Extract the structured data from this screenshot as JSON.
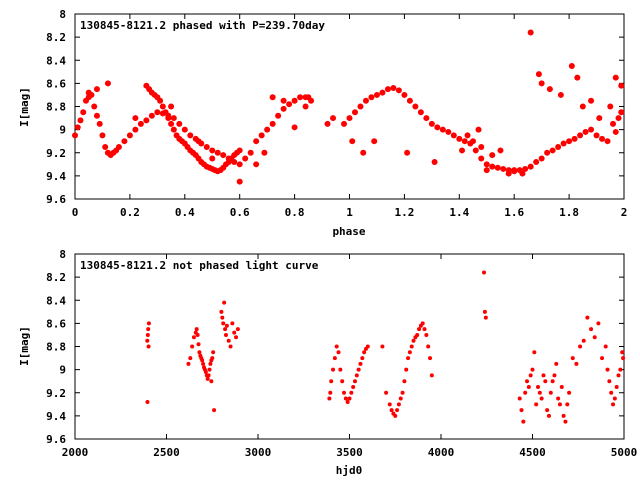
{
  "chart_data": [
    {
      "type": "scatter",
      "title": "130845-8121.2 phased with P=239.70day",
      "xlabel": "phase",
      "ylabel": "I[mag]",
      "xlim": [
        0,
        2
      ],
      "ylim": [
        8,
        9.6
      ],
      "y_inverted": true,
      "xticks": [
        "0",
        "0.2",
        "0.4",
        "0.6",
        "0.8",
        "1",
        "1.2",
        "1.4",
        "1.6",
        "1.8",
        "2"
      ],
      "yticks": [
        "8",
        "8.2",
        "8.4",
        "8.6",
        "8.8",
        "9",
        "9.2",
        "9.4",
        "9.6"
      ],
      "marker_color": "#ff0000",
      "series": [
        {
          "x": [
            0.0,
            0.01,
            0.02,
            0.03,
            0.04,
            0.05,
            0.06,
            0.07,
            0.08,
            0.09,
            0.1,
            0.11,
            0.12,
            0.13,
            0.14,
            0.15,
            0.16,
            0.18,
            0.2,
            0.22,
            0.24,
            0.26,
            0.28,
            0.3,
            0.32,
            0.34,
            0.36,
            0.38,
            0.4,
            0.42,
            0.44,
            0.46,
            0.48,
            0.5,
            0.52,
            0.54,
            0.56,
            0.58,
            0.6,
            0.62,
            0.64,
            0.66,
            0.68,
            0.7,
            0.72,
            0.74,
            0.76,
            0.78,
            0.8,
            0.82,
            0.84,
            0.86,
            0.26,
            0.27,
            0.28,
            0.29,
            0.3,
            0.31,
            0.32,
            0.33,
            0.34,
            0.35,
            0.36,
            0.37,
            0.38,
            0.39,
            0.4,
            0.41,
            0.42,
            0.43,
            0.44,
            0.45,
            0.46,
            0.47,
            0.48,
            0.49,
            0.5,
            0.51,
            0.52,
            0.53,
            0.54,
            0.55,
            0.56,
            0.57,
            0.58,
            0.59,
            0.6,
            0.05,
            0.08,
            0.12,
            0.22,
            0.35,
            0.45,
            0.5,
            0.6,
            0.66,
            0.69,
            0.72,
            0.76,
            0.8,
            0.84,
            0.85,
            0.92,
            0.94,
            0.98,
            1.0,
            1.02,
            1.04,
            1.06,
            1.08,
            1.1,
            1.12,
            1.14,
            1.16,
            1.18,
            1.2,
            1.22,
            1.24,
            1.26,
            1.28,
            1.3,
            1.32,
            1.34,
            1.36,
            1.38,
            1.4,
            1.42,
            1.44,
            1.46,
            1.48,
            1.5,
            1.52,
            1.54,
            1.56,
            1.58,
            1.6,
            1.62,
            1.64,
            1.66,
            1.68,
            1.7,
            1.72,
            1.74,
            1.76,
            1.78,
            1.8,
            1.82,
            1.84,
            1.86,
            1.88,
            1.9,
            1.92,
            1.94,
            1.96,
            1.98,
            1.95,
            1.97,
            1.99,
            1.01,
            1.05,
            1.09,
            1.21,
            1.31,
            1.41,
            1.5,
            1.58,
            1.66,
            1.69,
            1.7,
            1.73,
            1.77,
            1.81,
            1.83,
            1.85,
            1.88,
            1.91,
            1.97,
            1.99,
            1.48,
            1.52,
            1.55,
            1.45,
            1.43,
            1.47,
            1.6,
            1.63
          ],
          "y": [
            9.05,
            8.98,
            8.92,
            8.85,
            8.75,
            8.72,
            8.7,
            8.8,
            8.88,
            8.95,
            9.05,
            9.15,
            9.2,
            9.22,
            9.2,
            9.18,
            9.15,
            9.1,
            9.05,
            9.0,
            8.95,
            8.92,
            8.88,
            8.85,
            8.86,
            8.88,
            8.9,
            8.95,
            9.0,
            9.05,
            9.08,
            9.12,
            9.15,
            9.18,
            9.2,
            9.22,
            9.25,
            9.28,
            9.3,
            9.25,
            9.2,
            9.1,
            9.05,
            9.0,
            8.95,
            8.88,
            8.82,
            8.78,
            8.75,
            8.72,
            8.72,
            8.75,
            8.62,
            8.65,
            8.68,
            8.7,
            8.72,
            8.75,
            8.8,
            8.85,
            8.9,
            8.95,
            9.0,
            9.05,
            9.08,
            9.1,
            9.12,
            9.15,
            9.18,
            9.2,
            9.22,
            9.25,
            9.28,
            9.3,
            9.32,
            9.33,
            9.34,
            9.35,
            9.36,
            9.35,
            9.33,
            9.3,
            9.28,
            9.25,
            9.22,
            9.2,
            9.18,
            8.68,
            8.65,
            8.6,
            8.9,
            8.8,
            9.1,
            9.25,
            9.45,
            9.3,
            9.2,
            8.72,
            8.75,
            8.98,
            8.8,
            8.72,
            8.95,
            8.9,
            8.95,
            8.9,
            8.85,
            8.8,
            8.75,
            8.72,
            8.7,
            8.68,
            8.65,
            8.64,
            8.66,
            8.7,
            8.75,
            8.8,
            8.85,
            8.9,
            8.95,
            8.98,
            9.0,
            9.02,
            9.05,
            9.08,
            9.1,
            9.12,
            9.18,
            9.25,
            9.3,
            9.32,
            9.33,
            9.34,
            9.35,
            9.36,
            9.35,
            9.34,
            9.32,
            9.28,
            9.25,
            9.2,
            9.18,
            9.15,
            9.12,
            9.1,
            9.08,
            9.05,
            9.02,
            9.0,
            9.05,
            9.08,
            9.1,
            8.95,
            8.9,
            8.8,
            9.02,
            8.85,
            9.1,
            9.2,
            9.1,
            9.2,
            9.28,
            9.18,
            9.35,
            9.38,
            8.16,
            8.52,
            8.6,
            8.65,
            8.7,
            8.45,
            8.55,
            8.8,
            8.75,
            8.9,
            8.55,
            8.62,
            9.15,
            9.22,
            9.18,
            9.1,
            9.05,
            9.0,
            9.35,
            9.38
          ]
        }
      ]
    },
    {
      "type": "scatter",
      "title": "130845-8121.2 not phased light curve",
      "xlabel": "hjd0",
      "ylabel": "I[mag]",
      "xlim": [
        2000,
        5000
      ],
      "ylim": [
        8,
        9.6
      ],
      "y_inverted": true,
      "xticks": [
        "2000",
        "2500",
        "3000",
        "3500",
        "4000",
        "4500",
        "5000"
      ],
      "yticks": [
        "8",
        "8.2",
        "8.4",
        "8.6",
        "8.8",
        "9",
        "9.2",
        "9.4",
        "9.6"
      ],
      "marker_color": "#ff0000",
      "series": [
        {
          "x": [
            2395,
            2398,
            2400,
            2402,
            2404,
            2396,
            2620,
            2630,
            2640,
            2650,
            2660,
            2665,
            2670,
            2675,
            2680,
            2685,
            2690,
            2695,
            2700,
            2705,
            2710,
            2715,
            2720,
            2725,
            2730,
            2735,
            2740,
            2745,
            2750,
            2755,
            2760,
            2745,
            2800,
            2805,
            2810,
            2815,
            2820,
            2825,
            2830,
            2840,
            2850,
            2860,
            2870,
            2880,
            2890,
            3390,
            3395,
            3400,
            3410,
            3420,
            3430,
            3440,
            3450,
            3460,
            3470,
            3480,
            3490,
            3500,
            3510,
            3520,
            3530,
            3540,
            3550,
            3560,
            3570,
            3580,
            3590,
            3600,
            3680,
            3700,
            3720,
            3730,
            3740,
            3750,
            3760,
            3770,
            3780,
            3790,
            3800,
            3810,
            3820,
            3830,
            3840,
            3850,
            3860,
            3870,
            3880,
            3890,
            3900,
            3910,
            3920,
            3930,
            3940,
            3950,
            4235,
            4240,
            4245,
            4430,
            4440,
            4450,
            4460,
            4470,
            4480,
            4490,
            4500,
            4510,
            4520,
            4530,
            4540,
            4550,
            4560,
            4570,
            4580,
            4590,
            4600,
            4610,
            4620,
            4630,
            4640,
            4650,
            4660,
            4670,
            4680,
            4690,
            4700,
            4720,
            4740,
            4760,
            4780,
            4800,
            4820,
            4840,
            4860,
            4880,
            4900,
            4910,
            4920,
            4930,
            4940,
            4950,
            4960,
            4970,
            4980,
            4990,
            4995
          ],
          "y": [
            8.75,
            8.7,
            8.65,
            8.8,
            8.6,
            9.28,
            8.95,
            8.9,
            8.8,
            8.72,
            8.68,
            8.65,
            8.7,
            8.78,
            8.85,
            8.88,
            8.9,
            8.92,
            8.95,
            8.98,
            9.0,
            9.02,
            9.05,
            9.08,
            9.05,
            9.0,
            8.95,
            9.1,
            8.9,
            8.85,
            9.35,
            8.92,
            8.5,
            8.55,
            8.6,
            8.42,
            8.65,
            8.7,
            8.62,
            8.75,
            8.8,
            8.6,
            8.68,
            8.72,
            8.65,
            9.25,
            9.2,
            9.1,
            9.0,
            8.9,
            8.8,
            8.85,
            9.0,
            9.1,
            9.2,
            9.25,
            9.28,
            9.25,
            9.2,
            9.15,
            9.1,
            9.05,
            9.0,
            8.95,
            8.9,
            8.85,
            8.82,
            8.8,
            8.8,
            9.2,
            9.3,
            9.35,
            9.38,
            9.4,
            9.35,
            9.3,
            9.25,
            9.2,
            9.1,
            9.0,
            8.9,
            8.85,
            8.8,
            8.75,
            8.72,
            8.7,
            8.65,
            8.62,
            8.6,
            8.65,
            8.7,
            8.8,
            8.9,
            9.05,
            8.16,
            8.5,
            8.55,
            9.25,
            9.35,
            9.45,
            9.2,
            9.1,
            9.15,
            9.05,
            9.0,
            8.85,
            9.3,
            9.15,
            9.2,
            9.25,
            9.05,
            9.1,
            9.35,
            9.4,
            9.2,
            9.1,
            9.05,
            8.95,
            9.25,
            9.3,
            9.15,
            9.4,
            9.45,
            9.3,
            9.2,
            8.9,
            8.95,
            8.8,
            8.75,
            8.55,
            8.65,
            8.72,
            8.6,
            8.9,
            8.8,
            9.0,
            9.1,
            9.2,
            9.3,
            9.25,
            9.15,
            9.05,
            9.0,
            8.85,
            8.9
          ]
        }
      ]
    }
  ]
}
